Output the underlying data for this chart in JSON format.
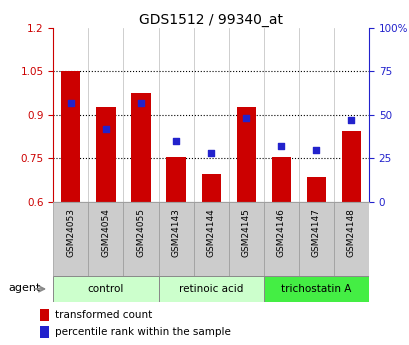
{
  "title": "GDS1512 / 99340_at",
  "categories": [
    "GSM24053",
    "GSM24054",
    "GSM24055",
    "GSM24143",
    "GSM24144",
    "GSM24145",
    "GSM24146",
    "GSM24147",
    "GSM24148"
  ],
  "bar_values": [
    1.05,
    0.925,
    0.975,
    0.755,
    0.695,
    0.925,
    0.755,
    0.685,
    0.845
  ],
  "bar_bottom": 0.6,
  "blue_values_pct": [
    57,
    42,
    57,
    35,
    28,
    48,
    32,
    30,
    47
  ],
  "bar_color": "#cc0000",
  "blue_color": "#2222cc",
  "ylim_left": [
    0.6,
    1.2
  ],
  "ylim_right": [
    0,
    100
  ],
  "yticks_left": [
    0.6,
    0.75,
    0.9,
    1.05,
    1.2
  ],
  "ytick_labels_left": [
    "0.6",
    "0.75",
    "0.9",
    "1.05",
    "1.2"
  ],
  "yticks_right": [
    0,
    25,
    50,
    75,
    100
  ],
  "ytick_labels_right": [
    "0",
    "25",
    "50",
    "75",
    "100%"
  ],
  "hlines": [
    0.75,
    0.9,
    1.05
  ],
  "group_colors": [
    "#ccffcc",
    "#ccffcc",
    "#44ee44"
  ],
  "group_labels": [
    "control",
    "retinoic acid",
    "trichostatin A"
  ],
  "group_starts": [
    0,
    3,
    6
  ],
  "group_ends": [
    2,
    5,
    8
  ],
  "legend_labels": [
    "transformed count",
    "percentile rank within the sample"
  ],
  "legend_colors": [
    "#cc0000",
    "#2222cc"
  ],
  "agent_label": "agent",
  "left_axis_color": "#cc0000",
  "right_axis_color": "#2222cc",
  "title_fontsize": 10,
  "tick_fontsize": 7.5,
  "xtick_fontsize": 6.5,
  "legend_fontsize": 7.5
}
